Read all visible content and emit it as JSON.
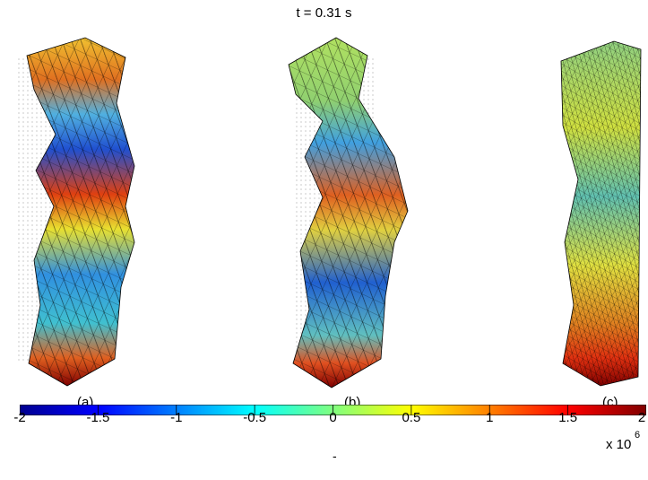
{
  "title": "t = 0.31 s",
  "panels": [
    {
      "label": "(a)"
    },
    {
      "label": "(b)"
    },
    {
      "label": "(c)"
    }
  ],
  "colorbar": {
    "colormap": "jet",
    "min": -2,
    "max": 2,
    "ticks": [
      "-2",
      "-1.5",
      "-1",
      "-0.5",
      "0",
      "0.5",
      "1",
      "1.5",
      "2"
    ],
    "multiplier_base": "x 10",
    "multiplier_exponent": "6"
  },
  "footer_mark": "-",
  "colors": {
    "jet": [
      "#00008f",
      "#0000ff",
      "#00ffff",
      "#ffff00",
      "#ff0000",
      "#800000"
    ]
  }
}
